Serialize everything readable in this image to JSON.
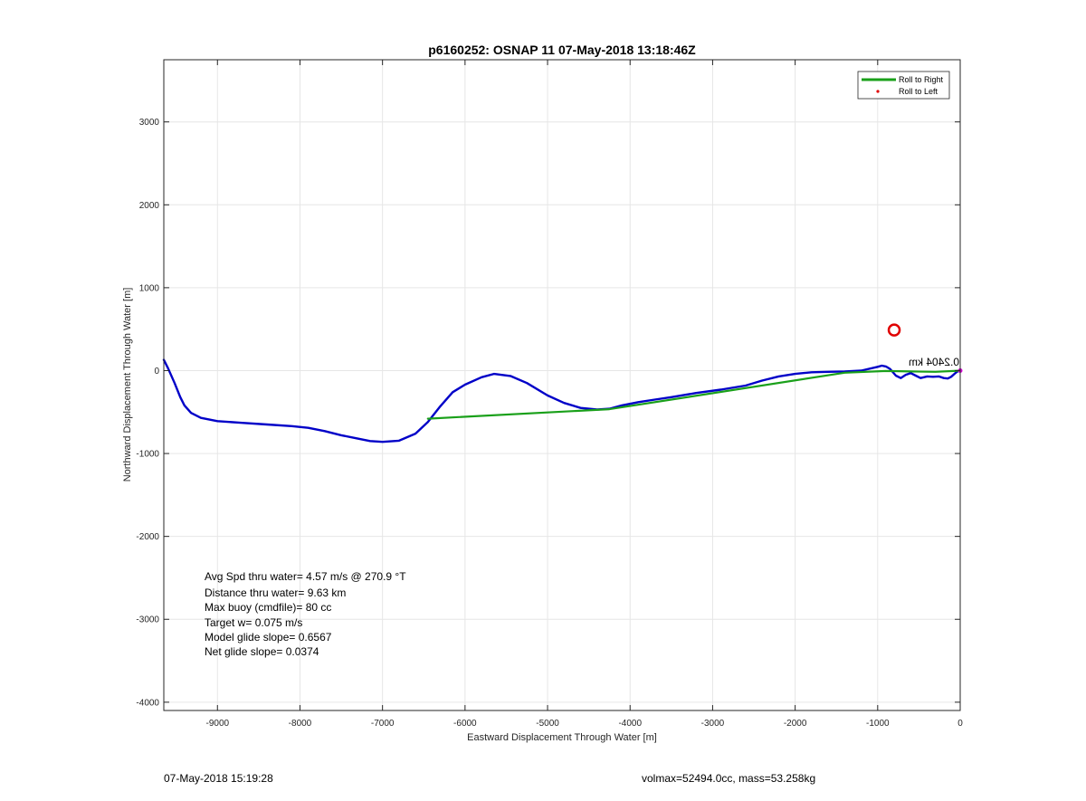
{
  "chart_data": {
    "type": "line",
    "title": "p6160252: OSNAP 11 07-May-2018 13:18:46Z",
    "xlabel": "Eastward Displacement Through Water [m]",
    "ylabel": "Northward Displacement Through Water [m]",
    "xlim": [
      -9650,
      0
    ],
    "ylim": [
      -4100,
      3750
    ],
    "xticks": [
      -9000,
      -8000,
      -7000,
      -6000,
      -5000,
      -4000,
      -3000,
      -2000,
      -1000,
      0
    ],
    "yticks": [
      -4000,
      -3000,
      -2000,
      -1000,
      0,
      1000,
      2000,
      3000
    ],
    "grid": true,
    "legend": {
      "placement": "top-right",
      "entries": [
        "Roll to Right",
        "Roll to Left"
      ]
    },
    "series": [
      {
        "color": "#0000c8",
        "x": [
          -9650,
          -9600,
          -9520,
          -9450,
          -9400,
          -9320,
          -9200,
          -9000,
          -8700,
          -8400,
          -8100,
          -7900,
          -7700,
          -7500,
          -7300,
          -7150,
          -7000,
          -6800,
          -6600,
          -6450,
          -6300,
          -6150,
          -6000,
          -5800,
          -5650,
          -5450,
          -5250,
          -5000,
          -4800,
          -4600,
          -4400,
          -4250,
          -4100,
          -3900,
          -3700,
          -3500,
          -3200,
          -2900,
          -2600,
          -2400,
          -2200,
          -2000,
          -1800,
          -1600,
          -1400,
          -1200,
          -1000,
          -950,
          -900,
          -850,
          -780,
          -720,
          -660,
          -600,
          -540,
          -480,
          -400,
          -330,
          -260,
          -200,
          -150,
          -110,
          -70,
          -40,
          -15,
          0
        ],
        "y": [
          130,
          30,
          -150,
          -320,
          -420,
          -510,
          -570,
          -610,
          -630,
          -650,
          -670,
          -690,
          -730,
          -780,
          -820,
          -850,
          -860,
          -845,
          -760,
          -620,
          -430,
          -260,
          -170,
          -80,
          -40,
          -65,
          -150,
          -300,
          -390,
          -450,
          -470,
          -460,
          -420,
          -380,
          -350,
          -320,
          -270,
          -230,
          -180,
          -120,
          -70,
          -40,
          -20,
          -15,
          -10,
          0,
          45,
          60,
          50,
          20,
          -60,
          -90,
          -50,
          -30,
          -60,
          -90,
          -70,
          -75,
          -70,
          -90,
          -95,
          -75,
          -40,
          -15,
          -5,
          0
        ]
      },
      {
        "name": "Roll to Right",
        "color": "#1aa01a",
        "x": [
          -6450,
          -4250,
          -1400,
          -900,
          -600,
          -300,
          -80,
          0
        ],
        "y": [
          -580,
          -465,
          -25,
          -5,
          -10,
          -15,
          -5,
          0
        ]
      },
      {
        "name": "Roll to Left",
        "color": "#e00000",
        "marker": "circle",
        "x": [
          -800
        ],
        "y": [
          490
        ]
      }
    ],
    "annotations": [
      {
        "text": "Avg Spd thru water=  4.57 m/s @ 270.9 °T"
      },
      {
        "text": "Distance thru water=  9.63 km"
      },
      {
        "text": "Max buoy (cmdfile)= 80 cc"
      },
      {
        "text": "Target w= 0.075 m/s"
      },
      {
        "text": "Model glide slope= 0.6567"
      },
      {
        "text": "Net glide slope= 0.0374"
      },
      {
        "text": "0.2404 km"
      }
    ]
  },
  "footer": {
    "timestamp": "07-May-2018 15:19:28",
    "volmax": "volmax=52494.0cc, mass=53.258kg"
  }
}
